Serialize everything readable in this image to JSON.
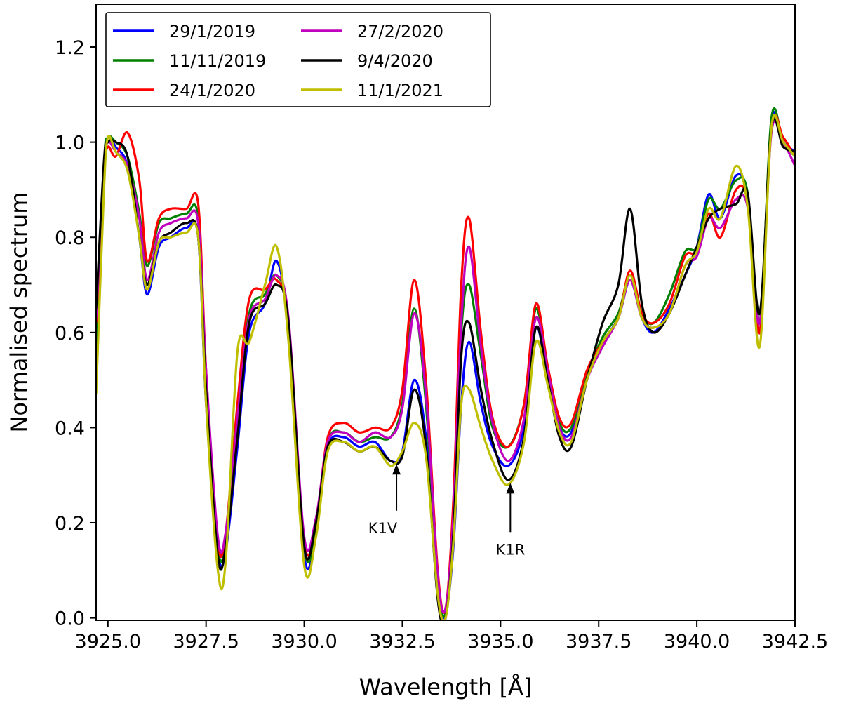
{
  "chart_data": {
    "type": "line",
    "title": "",
    "xlabel": "Wavelength [Å]",
    "ylabel": "Normalised spectrum",
    "xlim": [
      3924.7,
      3942.5
    ],
    "ylim": [
      -0.005,
      1.29
    ],
    "xticks": [
      3925.0,
      3927.5,
      3930.0,
      3932.5,
      3935.0,
      3937.5,
      3940.0,
      3942.5
    ],
    "xtick_labels": [
      "3925.0",
      "3927.5",
      "3930.0",
      "3932.5",
      "3935.0",
      "3937.5",
      "3940.0",
      "3942.5"
    ],
    "yticks": [
      0.0,
      0.2,
      0.4,
      0.6,
      0.8,
      1.0,
      1.2
    ],
    "ytick_labels": [
      "0.0",
      "0.2",
      "0.4",
      "0.6",
      "0.8",
      "1.0",
      "1.2"
    ],
    "grid": false,
    "legend": {
      "position": "top-left",
      "columns": 2
    },
    "series": [
      {
        "name": "29/1/2019",
        "color": "#0000ff",
        "x": [
          3924.7,
          3924.9,
          3925.0,
          3925.2,
          3925.5,
          3925.8,
          3926.0,
          3926.3,
          3926.6,
          3927.0,
          3927.3,
          3927.5,
          3927.8,
          3928.0,
          3928.3,
          3928.6,
          3929.0,
          3929.3,
          3929.6,
          3930.0,
          3930.3,
          3930.6,
          3931.0,
          3931.4,
          3931.8,
          3932.2,
          3932.5,
          3932.8,
          3933.1,
          3933.4,
          3933.6,
          3933.8,
          3934.0,
          3934.2,
          3934.5,
          3934.8,
          3935.2,
          3935.6,
          3935.9,
          3936.2,
          3936.5,
          3936.8,
          3937.2,
          3937.6,
          3938.0,
          3938.3,
          3938.6,
          3938.9,
          3939.3,
          3939.7,
          3940.0,
          3940.3,
          3940.6,
          3941.0,
          3941.3,
          3941.6,
          3941.9,
          3942.2,
          3942.5
        ],
        "y": [
          0.6,
          0.94,
          1.01,
          0.99,
          0.95,
          0.8,
          0.68,
          0.78,
          0.8,
          0.82,
          0.8,
          0.45,
          0.14,
          0.14,
          0.36,
          0.6,
          0.66,
          0.75,
          0.6,
          0.13,
          0.18,
          0.36,
          0.38,
          0.36,
          0.37,
          0.33,
          0.35,
          0.5,
          0.38,
          0.05,
          0.01,
          0.15,
          0.45,
          0.58,
          0.45,
          0.36,
          0.32,
          0.4,
          0.61,
          0.5,
          0.4,
          0.39,
          0.5,
          0.58,
          0.63,
          0.71,
          0.63,
          0.6,
          0.65,
          0.72,
          0.78,
          0.89,
          0.84,
          0.93,
          0.88,
          0.6,
          1.04,
          1.0,
          0.98
        ]
      },
      {
        "name": "11/11/2019",
        "color": "#008000",
        "x": [
          3924.7,
          3924.9,
          3925.0,
          3925.2,
          3925.5,
          3925.8,
          3926.0,
          3926.3,
          3926.6,
          3927.0,
          3927.3,
          3927.5,
          3927.8,
          3928.0,
          3928.3,
          3928.6,
          3929.0,
          3929.3,
          3929.6,
          3930.0,
          3930.3,
          3930.6,
          3931.0,
          3931.4,
          3931.8,
          3932.2,
          3932.5,
          3932.8,
          3933.1,
          3933.4,
          3933.6,
          3933.8,
          3934.0,
          3934.2,
          3934.5,
          3934.8,
          3935.2,
          3935.6,
          3935.9,
          3936.2,
          3936.5,
          3936.8,
          3937.2,
          3937.6,
          3938.0,
          3938.3,
          3938.6,
          3938.9,
          3939.3,
          3939.7,
          3940.0,
          3940.3,
          3940.6,
          3941.0,
          3941.3,
          3941.6,
          3941.9,
          3942.2,
          3942.5
        ],
        "y": [
          0.55,
          0.95,
          1.01,
          1.0,
          0.97,
          0.85,
          0.74,
          0.83,
          0.84,
          0.85,
          0.84,
          0.5,
          0.15,
          0.16,
          0.4,
          0.64,
          0.68,
          0.72,
          0.62,
          0.15,
          0.18,
          0.37,
          0.39,
          0.37,
          0.38,
          0.38,
          0.45,
          0.65,
          0.45,
          0.08,
          0.01,
          0.2,
          0.6,
          0.7,
          0.55,
          0.4,
          0.36,
          0.45,
          0.65,
          0.52,
          0.41,
          0.4,
          0.51,
          0.59,
          0.64,
          0.72,
          0.64,
          0.62,
          0.68,
          0.77,
          0.78,
          0.88,
          0.86,
          0.92,
          0.89,
          0.62,
          1.05,
          1.0,
          0.97
        ]
      },
      {
        "name": "24/1/2020",
        "color": "#ff0000",
        "x": [
          3924.7,
          3924.9,
          3925.0,
          3925.2,
          3925.5,
          3925.8,
          3926.0,
          3926.3,
          3926.6,
          3927.0,
          3927.3,
          3927.5,
          3927.8,
          3928.0,
          3928.3,
          3928.6,
          3929.0,
          3929.3,
          3929.6,
          3930.0,
          3930.3,
          3930.6,
          3931.0,
          3931.4,
          3931.8,
          3932.2,
          3932.5,
          3932.8,
          3933.1,
          3933.4,
          3933.6,
          3933.8,
          3934.0,
          3934.2,
          3934.5,
          3934.8,
          3935.2,
          3935.6,
          3935.9,
          3936.2,
          3936.5,
          3936.8,
          3937.2,
          3937.6,
          3938.0,
          3938.3,
          3938.6,
          3938.9,
          3939.3,
          3939.7,
          3940.0,
          3940.3,
          3940.6,
          3941.0,
          3941.3,
          3941.6,
          3941.9,
          3942.2,
          3942.5
        ],
        "y": [
          0.62,
          0.93,
          0.99,
          0.97,
          1.02,
          0.92,
          0.75,
          0.84,
          0.86,
          0.86,
          0.87,
          0.52,
          0.16,
          0.18,
          0.45,
          0.67,
          0.69,
          0.71,
          0.62,
          0.16,
          0.2,
          0.38,
          0.41,
          0.39,
          0.4,
          0.4,
          0.48,
          0.71,
          0.5,
          0.1,
          0.02,
          0.25,
          0.7,
          0.84,
          0.6,
          0.42,
          0.36,
          0.45,
          0.66,
          0.53,
          0.42,
          0.41,
          0.52,
          0.58,
          0.63,
          0.73,
          0.64,
          0.62,
          0.66,
          0.76,
          0.77,
          0.85,
          0.8,
          0.9,
          0.87,
          0.6,
          1.03,
          1.01,
          0.97
        ]
      },
      {
        "name": "27/2/2020",
        "color": "#bf00bf",
        "x": [
          3924.7,
          3924.9,
          3925.0,
          3925.2,
          3925.5,
          3925.8,
          3926.0,
          3926.3,
          3926.6,
          3927.0,
          3927.3,
          3927.5,
          3927.8,
          3928.0,
          3928.3,
          3928.6,
          3929.0,
          3929.3,
          3929.6,
          3930.0,
          3930.3,
          3930.6,
          3931.0,
          3931.4,
          3931.8,
          3932.2,
          3932.5,
          3932.8,
          3933.1,
          3933.4,
          3933.6,
          3933.8,
          3934.0,
          3934.2,
          3934.5,
          3934.8,
          3935.2,
          3935.6,
          3935.9,
          3936.2,
          3936.5,
          3936.8,
          3937.2,
          3937.6,
          3938.0,
          3938.3,
          3938.6,
          3938.9,
          3939.3,
          3939.7,
          3940.0,
          3940.3,
          3940.6,
          3941.0,
          3941.3,
          3941.6,
          3941.9,
          3942.2,
          3942.5
        ],
        "y": [
          0.63,
          0.94,
          1.0,
          0.98,
          0.95,
          0.84,
          0.71,
          0.81,
          0.83,
          0.84,
          0.83,
          0.52,
          0.17,
          0.18,
          0.42,
          0.63,
          0.67,
          0.72,
          0.63,
          0.17,
          0.21,
          0.37,
          0.39,
          0.37,
          0.39,
          0.38,
          0.44,
          0.64,
          0.47,
          0.09,
          0.02,
          0.22,
          0.62,
          0.78,
          0.57,
          0.41,
          0.33,
          0.42,
          0.63,
          0.52,
          0.4,
          0.38,
          0.5,
          0.57,
          0.63,
          0.71,
          0.63,
          0.61,
          0.64,
          0.74,
          0.76,
          0.84,
          0.82,
          0.88,
          0.86,
          0.62,
          1.02,
          1.0,
          0.95
        ]
      },
      {
        "name": "9/4/2020",
        "color": "#000000",
        "x": [
          3924.7,
          3924.9,
          3925.0,
          3925.2,
          3925.5,
          3925.8,
          3926.0,
          3926.3,
          3926.6,
          3927.0,
          3927.3,
          3927.5,
          3927.8,
          3928.0,
          3928.3,
          3928.6,
          3929.0,
          3929.3,
          3929.6,
          3930.0,
          3930.3,
          3930.6,
          3931.0,
          3931.4,
          3931.8,
          3932.2,
          3932.5,
          3932.8,
          3933.1,
          3933.4,
          3933.6,
          3933.8,
          3934.0,
          3934.2,
          3934.5,
          3934.8,
          3935.2,
          3935.6,
          3935.9,
          3936.2,
          3936.5,
          3936.8,
          3937.2,
          3937.6,
          3938.0,
          3938.3,
          3938.6,
          3938.9,
          3939.3,
          3939.7,
          3940.0,
          3940.3,
          3940.6,
          3941.0,
          3941.3,
          3941.6,
          3941.9,
          3942.2,
          3942.5
        ],
        "y": [
          0.65,
          0.96,
          1.0,
          1.0,
          0.97,
          0.8,
          0.7,
          0.79,
          0.81,
          0.83,
          0.8,
          0.48,
          0.13,
          0.15,
          0.38,
          0.62,
          0.66,
          0.7,
          0.62,
          0.15,
          0.2,
          0.36,
          0.37,
          0.35,
          0.36,
          0.33,
          0.34,
          0.48,
          0.36,
          0.04,
          0.0,
          0.18,
          0.55,
          0.62,
          0.48,
          0.37,
          0.29,
          0.38,
          0.61,
          0.5,
          0.38,
          0.36,
          0.5,
          0.62,
          0.7,
          0.86,
          0.66,
          0.6,
          0.64,
          0.72,
          0.78,
          0.84,
          0.86,
          0.87,
          0.89,
          0.64,
          1.03,
          0.99,
          0.98
        ]
      },
      {
        "name": "11/1/2021",
        "color": "#bfbf00",
        "x": [
          3924.7,
          3924.9,
          3925.0,
          3925.2,
          3925.5,
          3925.8,
          3926.0,
          3926.3,
          3926.6,
          3927.0,
          3927.3,
          3927.5,
          3927.8,
          3928.0,
          3928.3,
          3928.6,
          3929.0,
          3929.3,
          3929.6,
          3930.0,
          3930.3,
          3930.6,
          3931.0,
          3931.4,
          3931.8,
          3932.2,
          3932.5,
          3932.8,
          3933.1,
          3933.4,
          3933.6,
          3933.8,
          3934.0,
          3934.2,
          3934.5,
          3934.8,
          3935.2,
          3935.6,
          3935.9,
          3936.2,
          3936.5,
          3936.8,
          3937.2,
          3937.6,
          3938.0,
          3938.3,
          3938.6,
          3938.9,
          3939.3,
          3939.7,
          3940.0,
          3940.3,
          3940.6,
          3941.0,
          3941.3,
          3941.6,
          3941.9,
          3942.2,
          3942.5
        ],
        "y": [
          0.47,
          0.9,
          1.01,
          0.98,
          0.94,
          0.8,
          0.69,
          0.79,
          0.8,
          0.81,
          0.8,
          0.45,
          0.1,
          0.12,
          0.56,
          0.58,
          0.7,
          0.78,
          0.58,
          0.11,
          0.17,
          0.35,
          0.37,
          0.35,
          0.36,
          0.32,
          0.35,
          0.41,
          0.34,
          0.05,
          0.0,
          0.16,
          0.45,
          0.48,
          0.4,
          0.33,
          0.28,
          0.37,
          0.58,
          0.49,
          0.39,
          0.37,
          0.5,
          0.58,
          0.63,
          0.72,
          0.63,
          0.61,
          0.64,
          0.74,
          0.77,
          0.86,
          0.84,
          0.95,
          0.86,
          0.57,
          1.03,
          1.0,
          0.97
        ]
      }
    ],
    "annotations": [
      {
        "text": "K1V",
        "x": 3932.35,
        "y": 0.325,
        "text_x": 3932.0,
        "text_y": 0.19
      },
      {
        "text": "K1R",
        "x": 3935.25,
        "y": 0.285,
        "text_x": 3935.25,
        "text_y": 0.145
      }
    ]
  }
}
